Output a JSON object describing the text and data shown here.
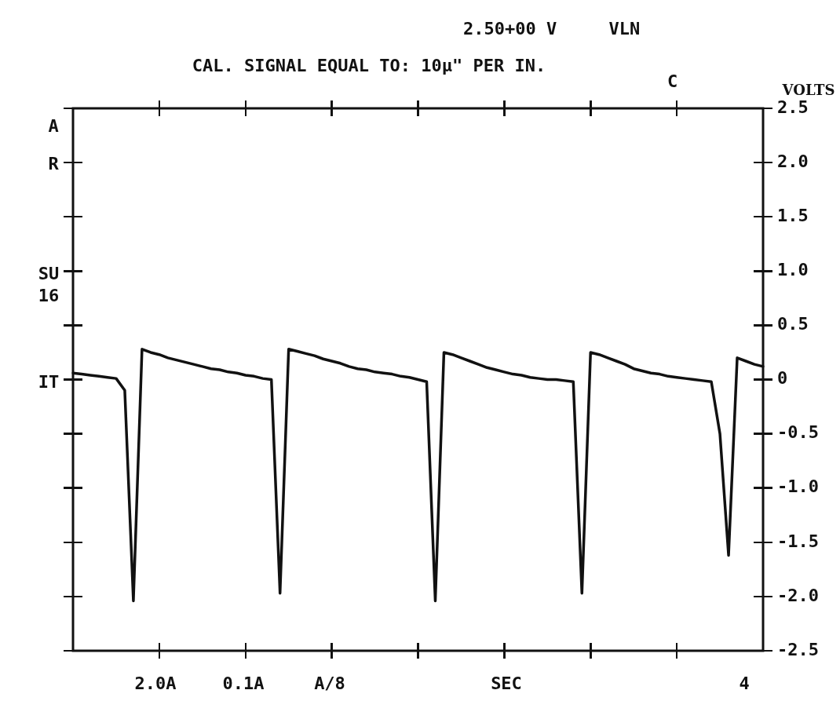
{
  "chart_data": {
    "type": "line",
    "title": "CAL. SIGNAL EQUAL TO: 10µ\" PER IN.",
    "subtitle": "2.50+00 V     VLN",
    "ylabel": "VOLTS",
    "annotations": [
      "2.0A",
      "0.1A",
      "A/8",
      "SEC",
      "4",
      "A",
      "R",
      "SU",
      "16",
      "IT",
      "C"
    ],
    "categories": [
      null,
      null,
      null,
      null,
      null,
      null,
      null,
      null,
      null,
      null,
      null,
      null,
      null,
      null,
      null,
      null,
      null,
      null,
      null,
      null,
      null,
      null,
      null,
      null,
      null,
      null,
      null,
      null,
      null,
      null,
      null,
      null,
      null,
      null,
      null,
      null,
      null,
      null,
      null,
      null,
      null,
      null,
      null,
      null,
      null,
      null,
      null,
      null,
      null,
      null,
      null,
      null,
      null,
      null,
      null,
      null,
      null,
      null,
      null,
      null,
      null,
      null,
      null,
      null,
      null,
      null,
      null,
      null,
      null,
      null,
      null,
      null,
      null,
      null,
      null,
      null,
      null,
      null,
      null,
      null,
      null
    ],
    "series": [
      {
        "color": "#111111",
        "values": [
          0.06,
          0.05,
          0.04,
          0.03,
          0.02,
          0.01,
          -0.1,
          -2.04,
          0.28,
          0.25,
          0.23,
          0.2,
          0.18,
          0.16,
          0.14,
          0.12,
          0.1,
          0.09,
          0.07,
          0.06,
          0.04,
          0.03,
          0.01,
          0.0,
          -1.97,
          0.28,
          0.26,
          0.24,
          0.22,
          0.19,
          0.17,
          0.15,
          0.12,
          0.1,
          0.09,
          0.07,
          0.06,
          0.05,
          0.03,
          0.02,
          0.0,
          -0.02,
          -2.04,
          0.25,
          0.23,
          0.2,
          0.17,
          0.14,
          0.11,
          0.09,
          0.07,
          0.05,
          0.04,
          0.02,
          0.01,
          0.0,
          0.0,
          -0.01,
          -0.02,
          -1.97,
          0.25,
          0.23,
          0.2,
          0.17,
          0.14,
          0.1,
          0.08,
          0.06,
          0.05,
          0.03,
          0.02,
          0.01,
          0.0,
          -0.01,
          -0.02,
          -0.5,
          -1.62,
          0.2,
          0.17,
          0.14,
          0.12
        ]
      }
    ],
    "ylim": [
      -2.5,
      2.5
    ],
    "yticks": [
      {
        "value": -2.5,
        "label": "-2.5"
      },
      {
        "value": -2,
        "label": "-2.0"
      },
      {
        "value": -1.5,
        "label": "-1.5"
      },
      {
        "value": -1,
        "label": "-1.0"
      },
      {
        "value": -0.5,
        "label": "-0.5"
      },
      {
        "value": 0,
        "label": "0"
      },
      {
        "value": 0.5,
        "label": "0.5"
      },
      {
        "value": 1,
        "label": "1.0"
      },
      {
        "value": 1.5,
        "label": "1.5"
      },
      {
        "value": 2,
        "label": "2.0"
      },
      {
        "value": 2.5,
        "label": "2.5"
      }
    ],
    "tick_labels": "y",
    "grid": false,
    "legend": false,
    "marker": "none",
    "line_style": "solid"
  }
}
